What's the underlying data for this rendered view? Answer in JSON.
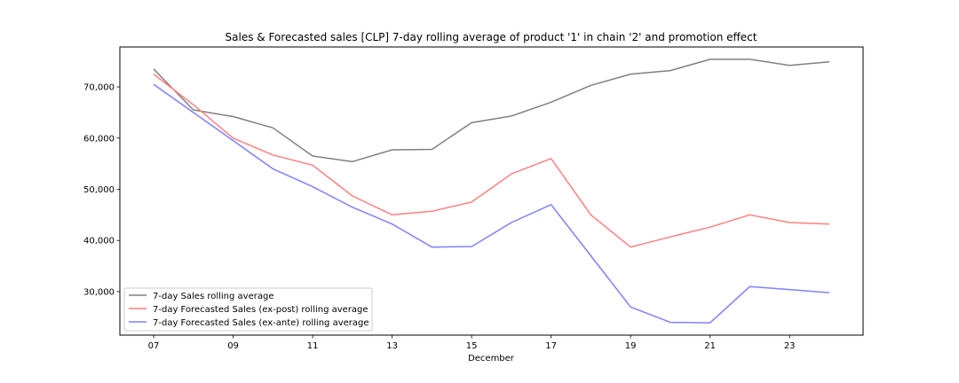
{
  "chart_data": {
    "type": "line",
    "title": "Sales & Forecasted sales [CLP] 7-day rolling average of product '1' in chain '2' and promotion effect",
    "xlabel": "December",
    "ylabel": "",
    "x": [
      7,
      8,
      9,
      10,
      11,
      12,
      13,
      14,
      15,
      16,
      17,
      18,
      19,
      20,
      21,
      22,
      23,
      24
    ],
    "xlim": [
      6.15,
      24.85
    ],
    "ylim": [
      21500,
      77800
    ],
    "x_ticks": [
      {
        "value": 7,
        "label": "07"
      },
      {
        "value": 9,
        "label": "09"
      },
      {
        "value": 11,
        "label": "11"
      },
      {
        "value": 13,
        "label": "13"
      },
      {
        "value": 15,
        "label": "15"
      },
      {
        "value": 17,
        "label": "17"
      },
      {
        "value": 19,
        "label": "19"
      },
      {
        "value": 21,
        "label": "21"
      },
      {
        "value": 23,
        "label": "23"
      }
    ],
    "y_ticks": [
      {
        "value": 30000,
        "label": "30,000"
      },
      {
        "value": 40000,
        "label": "40,000"
      },
      {
        "value": 50000,
        "label": "50,000"
      },
      {
        "value": 60000,
        "label": "60,000"
      },
      {
        "value": 70000,
        "label": "70,000"
      }
    ],
    "grid": false,
    "legend_position": "lower-left",
    "series": [
      {
        "name": "7-day Sales rolling average",
        "color": "#808080",
        "values": [
          73500,
          65500,
          64200,
          62000,
          56500,
          55400,
          57700,
          57800,
          63000,
          64300,
          67000,
          70300,
          72500,
          73200,
          75400,
          75400,
          74200,
          74900
        ]
      },
      {
        "name": "7-day Forecasted Sales (ex-post) rolling average",
        "color": "#ff7f7f",
        "values": [
          72500,
          66500,
          60000,
          56700,
          54700,
          48700,
          45000,
          45700,
          47500,
          53000,
          56000,
          45000,
          38700,
          40700,
          42600,
          45000,
          43500,
          43200
        ]
      },
      {
        "name": "7-day Forecasted Sales (ex-ante) rolling average",
        "color": "#7f7fff",
        "values": [
          70500,
          65000,
          59500,
          54000,
          50500,
          46500,
          43200,
          38700,
          38800,
          43500,
          47000,
          37000,
          27000,
          24000,
          23900,
          31000,
          30400,
          29800
        ]
      }
    ]
  }
}
